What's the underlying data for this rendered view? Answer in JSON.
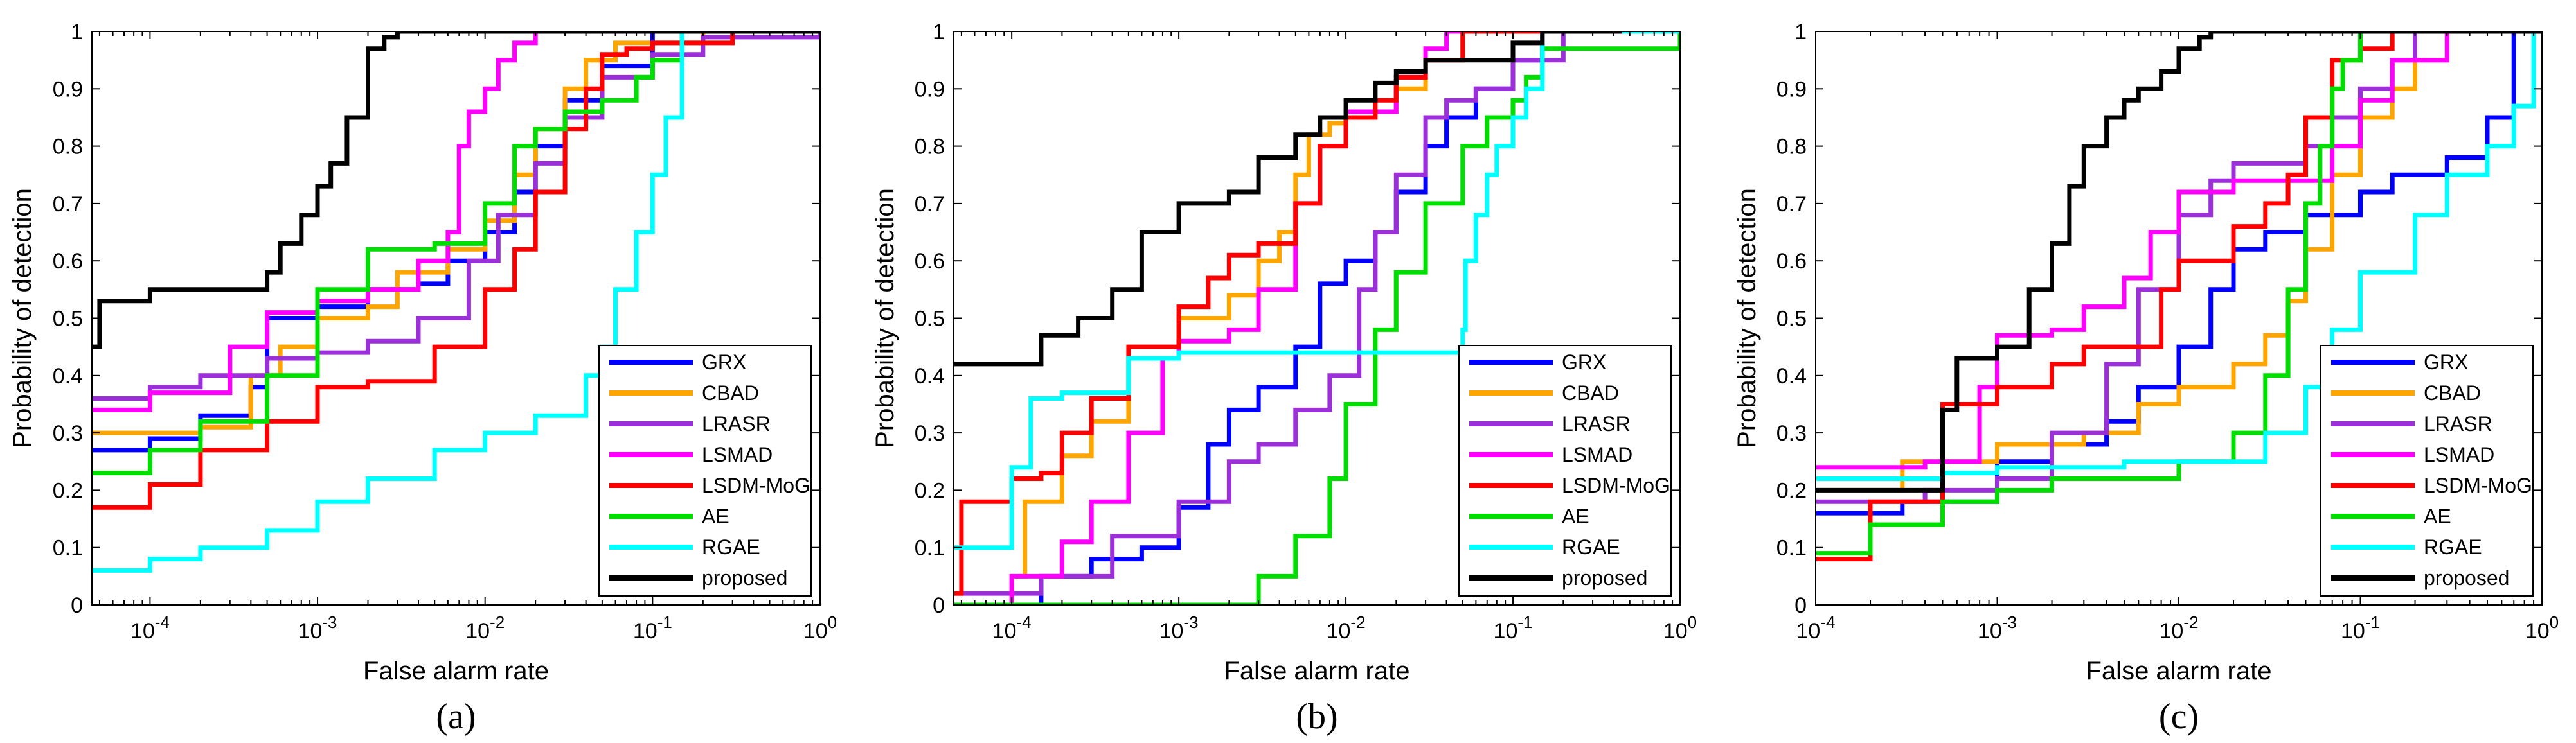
{
  "figure": {
    "x_axis_label": "False alarm rate",
    "y_axis_label": "Probability of detection"
  },
  "colors": {
    "GRX": "#0000ff",
    "CBAD": "#ffa500",
    "LRASR": "#9b30d9",
    "LSMAD": "#ff00ff",
    "LSDM-MoG": "#ff0000",
    "AE": "#00dd00",
    "RGAE": "#00ffff",
    "proposed": "#000000"
  },
  "x_tick_labels": [
    "10^-4",
    "10^-3",
    "10^-2",
    "10^-1",
    "10^0"
  ],
  "y_tick_labels": [
    "0",
    "0.1",
    "0.2",
    "0.3",
    "0.4",
    "0.5",
    "0.6",
    "0.7",
    "0.8",
    "0.9",
    "1"
  ],
  "chart_data": [
    {
      "type": "line",
      "panel_label": "(a)",
      "xscale": "log",
      "xlim": [
        4.5e-05,
        1
      ],
      "ylim": [
        0,
        1
      ],
      "xlabel": "False alarm rate",
      "ylabel": "Probability of detection",
      "legend_position": "bottom-right",
      "series": [
        {
          "name": "GRX",
          "x": [
            4.5e-05,
            0.0001,
            0.0002,
            0.0004,
            0.0005,
            0.001,
            0.002,
            0.004,
            0.006,
            0.01,
            0.015,
            0.02,
            0.03,
            0.05,
            0.1,
            1
          ],
          "y": [
            0.27,
            0.29,
            0.33,
            0.38,
            0.5,
            0.52,
            0.55,
            0.56,
            0.6,
            0.65,
            0.72,
            0.8,
            0.88,
            0.94,
            1.0,
            1.0
          ]
        },
        {
          "name": "CBAD",
          "x": [
            4.5e-05,
            0.0002,
            0.0004,
            0.0006,
            0.001,
            0.002,
            0.003,
            0.006,
            0.01,
            0.015,
            0.02,
            0.03,
            0.04,
            0.06,
            0.2,
            1
          ],
          "y": [
            0.3,
            0.31,
            0.4,
            0.45,
            0.5,
            0.52,
            0.58,
            0.62,
            0.67,
            0.75,
            0.83,
            0.9,
            0.95,
            0.98,
            1.0,
            1.0
          ]
        },
        {
          "name": "LRASR",
          "x": [
            4.5e-05,
            0.0001,
            0.0002,
            0.0005,
            0.001,
            0.002,
            0.004,
            0.008,
            0.012,
            0.02,
            0.03,
            0.05,
            0.1,
            0.2,
            1
          ],
          "y": [
            0.36,
            0.38,
            0.4,
            0.43,
            0.44,
            0.46,
            0.5,
            0.6,
            0.68,
            0.77,
            0.85,
            0.92,
            0.96,
            0.99,
            1.0
          ]
        },
        {
          "name": "LSMAD",
          "x": [
            4.5e-05,
            0.0001,
            0.0003,
            0.0005,
            0.001,
            0.002,
            0.004,
            0.006,
            0.007,
            0.008,
            0.01,
            0.012,
            0.015,
            0.02,
            1
          ],
          "y": [
            0.34,
            0.37,
            0.45,
            0.51,
            0.53,
            0.55,
            0.6,
            0.65,
            0.8,
            0.86,
            0.9,
            0.95,
            0.98,
            1.0,
            1.0
          ]
        },
        {
          "name": "LSDM-MoG",
          "x": [
            4.5e-05,
            0.0001,
            0.0002,
            0.0005,
            0.001,
            0.002,
            0.005,
            0.01,
            0.015,
            0.02,
            0.03,
            0.04,
            0.05,
            0.07,
            0.1,
            0.3,
            1
          ],
          "y": [
            0.17,
            0.21,
            0.27,
            0.32,
            0.38,
            0.39,
            0.45,
            0.55,
            0.62,
            0.72,
            0.83,
            0.9,
            0.96,
            0.97,
            0.98,
            1.0,
            1.0
          ]
        },
        {
          "name": "AE",
          "x": [
            4.5e-05,
            0.0001,
            0.0002,
            0.0005,
            0.001,
            0.002,
            0.005,
            0.01,
            0.015,
            0.02,
            0.03,
            0.05,
            0.08,
            0.1,
            0.15,
            1
          ],
          "y": [
            0.23,
            0.27,
            0.32,
            0.4,
            0.55,
            0.62,
            0.63,
            0.7,
            0.8,
            0.83,
            0.86,
            0.88,
            0.92,
            0.95,
            1.0,
            1.0
          ]
        },
        {
          "name": "RGAE",
          "x": [
            4.5e-05,
            0.0001,
            0.0002,
            0.0005,
            0.001,
            0.002,
            0.005,
            0.01,
            0.02,
            0.04,
            0.05,
            0.06,
            0.08,
            0.1,
            0.12,
            0.15,
            1
          ],
          "y": [
            0.06,
            0.08,
            0.1,
            0.13,
            0.18,
            0.22,
            0.27,
            0.3,
            0.33,
            0.4,
            0.45,
            0.55,
            0.65,
            0.75,
            0.85,
            1.0,
            1.0
          ]
        },
        {
          "name": "proposed",
          "x": [
            4.5e-05,
            5e-05,
            0.0001,
            0.0005,
            0.0006,
            0.0008,
            0.001,
            0.0012,
            0.0015,
            0.002,
            0.0025,
            0.003,
            1
          ],
          "y": [
            0.45,
            0.53,
            0.55,
            0.58,
            0.63,
            0.68,
            0.73,
            0.77,
            0.85,
            0.97,
            0.99,
            1.0,
            1.0
          ]
        }
      ]
    },
    {
      "type": "line",
      "panel_label": "(b)",
      "xscale": "log",
      "xlim": [
        4.5e-05,
        1
      ],
      "ylim": [
        0,
        1
      ],
      "xlabel": "False alarm rate",
      "ylabel": "Probability of detection",
      "legend_position": "bottom-right",
      "series": [
        {
          "name": "GRX",
          "x": [
            4.5e-05,
            0.00015,
            0.0003,
            0.0006,
            0.001,
            0.0015,
            0.002,
            0.003,
            0.005,
            0.007,
            0.01,
            0.015,
            0.02,
            0.03,
            0.04,
            0.06,
            0.1,
            0.15,
            1
          ],
          "y": [
            0.0,
            0.05,
            0.08,
            0.1,
            0.17,
            0.28,
            0.34,
            0.38,
            0.45,
            0.56,
            0.6,
            0.65,
            0.72,
            0.8,
            0.85,
            0.9,
            0.95,
            1.0,
            1.0
          ]
        },
        {
          "name": "CBAD",
          "x": [
            4.5e-05,
            0.0001,
            0.00012,
            0.0002,
            0.0003,
            0.0005,
            0.001,
            0.002,
            0.003,
            0.004,
            0.005,
            0.006,
            0.008,
            0.01,
            0.02,
            0.03,
            0.05,
            1
          ],
          "y": [
            0.0,
            0.05,
            0.18,
            0.26,
            0.32,
            0.43,
            0.5,
            0.54,
            0.6,
            0.65,
            0.75,
            0.82,
            0.84,
            0.86,
            0.9,
            0.95,
            1.0,
            1.0
          ]
        },
        {
          "name": "LRASR",
          "x": [
            4.5e-05,
            0.00015,
            0.0004,
            0.001,
            0.002,
            0.003,
            0.005,
            0.008,
            0.012,
            0.015,
            0.02,
            0.03,
            0.04,
            0.06,
            0.1,
            0.2,
            1
          ],
          "y": [
            0.02,
            0.05,
            0.12,
            0.18,
            0.25,
            0.28,
            0.34,
            0.4,
            0.55,
            0.65,
            0.75,
            0.85,
            0.88,
            0.9,
            0.95,
            1.0,
            1.0
          ]
        },
        {
          "name": "LSMAD",
          "x": [
            4.5e-05,
            0.0001,
            0.0002,
            0.0003,
            0.0005,
            0.0008,
            0.001,
            0.002,
            0.003,
            0.005,
            0.007,
            0.01,
            0.02,
            0.03,
            0.04,
            1
          ],
          "y": [
            0.0,
            0.05,
            0.11,
            0.18,
            0.3,
            0.43,
            0.46,
            0.48,
            0.55,
            0.7,
            0.8,
            0.86,
            0.92,
            0.97,
            1.0,
            1.0
          ]
        },
        {
          "name": "LSDM-MoG",
          "x": [
            4.5e-05,
            5e-05,
            0.0001,
            0.00015,
            0.0002,
            0.0003,
            0.0005,
            0.001,
            0.0015,
            0.002,
            0.003,
            0.005,
            0.007,
            0.01,
            0.015,
            0.02,
            0.03,
            0.05,
            1
          ],
          "y": [
            0.02,
            0.18,
            0.22,
            0.23,
            0.3,
            0.36,
            0.45,
            0.52,
            0.57,
            0.61,
            0.63,
            0.7,
            0.8,
            0.85,
            0.88,
            0.92,
            0.95,
            1.0,
            1.0
          ]
        },
        {
          "name": "AE",
          "x": [
            4.5e-05,
            0.0025,
            0.003,
            0.005,
            0.008,
            0.01,
            0.015,
            0.02,
            0.03,
            0.05,
            0.07,
            0.1,
            0.12,
            0.15,
            1
          ],
          "y": [
            0.0,
            0.0,
            0.05,
            0.12,
            0.22,
            0.35,
            0.48,
            0.58,
            0.7,
            0.8,
            0.85,
            0.88,
            0.92,
            0.97,
            1.0
          ]
        },
        {
          "name": "RGAE",
          "x": [
            4.5e-05,
            5e-05,
            0.0001,
            0.00013,
            0.0002,
            0.0005,
            0.001,
            0.005,
            0.01,
            0.02,
            0.05,
            0.052,
            0.06,
            0.07,
            0.08,
            0.1,
            0.12,
            0.15,
            1
          ],
          "y": [
            0.1,
            0.1,
            0.24,
            0.36,
            0.37,
            0.43,
            0.44,
            0.44,
            0.44,
            0.44,
            0.48,
            0.6,
            0.68,
            0.75,
            0.8,
            0.85,
            0.9,
            1.0,
            1.0
          ]
        },
        {
          "name": "proposed",
          "x": [
            4.5e-05,
            0.0001,
            0.00015,
            0.00025,
            0.0004,
            0.0006,
            0.001,
            0.002,
            0.003,
            0.005,
            0.007,
            0.01,
            0.015,
            0.02,
            0.03,
            0.1,
            0.15,
            0.45
          ],
          "y": [
            0.42,
            0.42,
            0.47,
            0.5,
            0.55,
            0.65,
            0.7,
            0.72,
            0.78,
            0.82,
            0.85,
            0.88,
            0.91,
            0.93,
            0.95,
            0.98,
            1.0,
            1.0
          ]
        }
      ]
    },
    {
      "type": "line",
      "panel_label": "(c)",
      "xscale": "log",
      "xlim": [
        0.0001,
        1
      ],
      "ylim": [
        0,
        1
      ],
      "xlabel": "False alarm rate",
      "ylabel": "Probability of detection",
      "legend_position": "bottom-right",
      "series": [
        {
          "name": "GRX",
          "x": [
            0.0001,
            0.0003,
            0.001,
            0.002,
            0.004,
            0.006,
            0.01,
            0.015,
            0.02,
            0.03,
            0.05,
            0.1,
            0.15,
            0.3,
            0.5,
            0.7,
            1
          ],
          "y": [
            0.16,
            0.18,
            0.25,
            0.28,
            0.32,
            0.38,
            0.45,
            0.55,
            0.62,
            0.65,
            0.68,
            0.72,
            0.75,
            0.78,
            0.85,
            1.0,
            1.0
          ]
        },
        {
          "name": "CBAD",
          "x": [
            0.0001,
            0.0003,
            0.001,
            0.003,
            0.006,
            0.01,
            0.02,
            0.03,
            0.04,
            0.05,
            0.07,
            0.1,
            0.15,
            0.2,
            0.3,
            1
          ],
          "y": [
            0.2,
            0.25,
            0.28,
            0.3,
            0.35,
            0.38,
            0.42,
            0.47,
            0.53,
            0.62,
            0.75,
            0.85,
            0.9,
            0.95,
            1.0,
            1.0
          ]
        },
        {
          "name": "LRASR",
          "x": [
            0.0001,
            0.0004,
            0.001,
            0.002,
            0.004,
            0.006,
            0.01,
            0.015,
            0.02,
            0.03,
            0.05,
            0.07,
            0.1,
            0.15,
            0.2,
            1
          ],
          "y": [
            0.18,
            0.2,
            0.22,
            0.3,
            0.42,
            0.55,
            0.68,
            0.74,
            0.77,
            0.77,
            0.8,
            0.85,
            0.9,
            0.95,
            1.0,
            1.0
          ]
        },
        {
          "name": "LSMAD",
          "x": [
            0.0001,
            0.0004,
            0.0008,
            0.001,
            0.002,
            0.003,
            0.005,
            0.007,
            0.01,
            0.02,
            0.05,
            0.07,
            0.1,
            0.15,
            0.3,
            1
          ],
          "y": [
            0.24,
            0.25,
            0.38,
            0.47,
            0.48,
            0.52,
            0.57,
            0.65,
            0.72,
            0.74,
            0.74,
            0.8,
            0.88,
            0.95,
            1.0,
            1.0
          ]
        },
        {
          "name": "LSDM-MoG",
          "x": [
            0.0001,
            0.0002,
            0.0005,
            0.001,
            0.002,
            0.003,
            0.005,
            0.008,
            0.01,
            0.02,
            0.03,
            0.04,
            0.05,
            0.07,
            0.1,
            0.15,
            1
          ],
          "y": [
            0.08,
            0.18,
            0.35,
            0.38,
            0.42,
            0.45,
            0.45,
            0.55,
            0.6,
            0.66,
            0.7,
            0.75,
            0.85,
            0.95,
            0.97,
            1.0,
            1.0
          ]
        },
        {
          "name": "AE",
          "x": [
            0.0001,
            0.0002,
            0.0005,
            0.001,
            0.002,
            0.005,
            0.01,
            0.02,
            0.03,
            0.04,
            0.05,
            0.06,
            0.07,
            0.08,
            0.1,
            1
          ],
          "y": [
            0.09,
            0.14,
            0.18,
            0.2,
            0.22,
            0.22,
            0.25,
            0.3,
            0.4,
            0.55,
            0.7,
            0.8,
            0.9,
            0.95,
            1.0,
            1.0
          ]
        },
        {
          "name": "RGAE",
          "x": [
            0.0001,
            0.0005,
            0.001,
            0.005,
            0.01,
            0.02,
            0.03,
            0.05,
            0.07,
            0.1,
            0.2,
            0.3,
            0.5,
            0.7,
            0.9,
            1
          ],
          "y": [
            0.22,
            0.23,
            0.24,
            0.25,
            0.25,
            0.25,
            0.3,
            0.38,
            0.48,
            0.58,
            0.68,
            0.75,
            0.8,
            0.87,
            1.0,
            1.0
          ]
        },
        {
          "name": "proposed",
          "x": [
            0.0001,
            0.0005,
            0.0006,
            0.001,
            0.0015,
            0.002,
            0.0025,
            0.003,
            0.004,
            0.005,
            0.006,
            0.008,
            0.01,
            0.013,
            0.015,
            1
          ],
          "y": [
            0.2,
            0.34,
            0.43,
            0.45,
            0.55,
            0.63,
            0.73,
            0.8,
            0.85,
            0.88,
            0.9,
            0.93,
            0.97,
            0.99,
            1.0,
            1.0
          ]
        }
      ]
    }
  ]
}
